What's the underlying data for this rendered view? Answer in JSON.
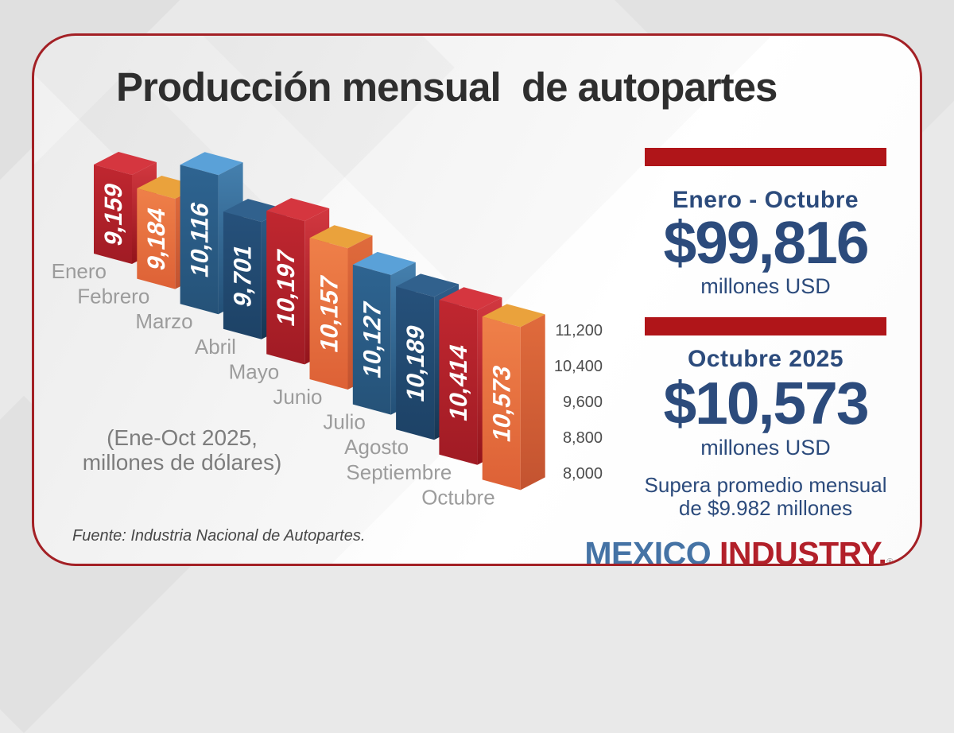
{
  "card": {
    "title": "Producción mensual  de autopartes",
    "note_line1": "(Ene-Oct 2025,",
    "note_line2": "millones de dólares)",
    "source": "Fuente: Industria Nacional de Autopartes."
  },
  "chart_data": {
    "type": "bar",
    "style": "3d-cascade-columns",
    "title": "Producción mensual de autopartes",
    "unit_note": "(Ene-Oct 2025, millones de dólares)",
    "categories": [
      "Enero",
      "Febrero",
      "Marzo",
      "Abril",
      "Mayo",
      "Junio",
      "Julio",
      "Agosto",
      "Septiembre",
      "Octubre"
    ],
    "values": [
      9159,
      9184,
      10116,
      9701,
      10197,
      10157,
      10127,
      10189,
      10414,
      10573
    ],
    "value_labels": [
      "9,159",
      "9,184",
      "10,116",
      "9,701",
      "10,197",
      "10,157",
      "10,127",
      "10,189",
      "10,414",
      "10,573"
    ],
    "yticks": [
      "11,200",
      "10,400",
      "9,600",
      "8,800",
      "8,000"
    ],
    "ylim": [
      8000,
      11200
    ],
    "xlabel": "",
    "ylabel": "",
    "legend": "none",
    "grid": false,
    "value_label_color": "#ffffff",
    "category_label_color": "#9c9c9c",
    "tick_label_color": "#4d4d4d",
    "palette_cycle": [
      "red",
      "orange",
      "blue",
      "navy"
    ],
    "palettes": {
      "red": {
        "top": "#d5363f",
        "side_top": "#d23840",
        "side_bottom": "#93141b",
        "front_top": "#c02730",
        "front_bottom": "#a01b24"
      },
      "orange": {
        "top": "#eaa23c",
        "side_top": "#e06b3c",
        "side_bottom": "#c35330",
        "front_top": "#ef8049",
        "front_bottom": "#dd6136"
      },
      "blue": {
        "top": "#5aa1d8",
        "side_top": "#4580ae",
        "side_bottom": "#235077",
        "front_top": "#2e6491",
        "front_bottom": "#255278"
      },
      "navy": {
        "top": "#31618d",
        "side_top": "#2f5d89",
        "side_bottom": "#173653",
        "front_top": "#26517b",
        "front_bottom": "#1d4266"
      }
    }
  },
  "panel": {
    "accent_color": "#b01519",
    "text_color": "#2c4b7c",
    "block1": {
      "heading": "Enero - Octubre",
      "value": "$99,816",
      "unit": "millones USD"
    },
    "block2": {
      "heading": "Octubre 2025",
      "value": "$10,573",
      "unit": "millones USD"
    },
    "footnote_line1": "Supera promedio mensual",
    "footnote_line2": "de $9.982 millones"
  },
  "logo": {
    "word1": "MEXICO",
    "word2": " INDUSTRY.",
    "registered": "®",
    "word1_color": "#4573a5",
    "word2_color": "#b2202a"
  }
}
